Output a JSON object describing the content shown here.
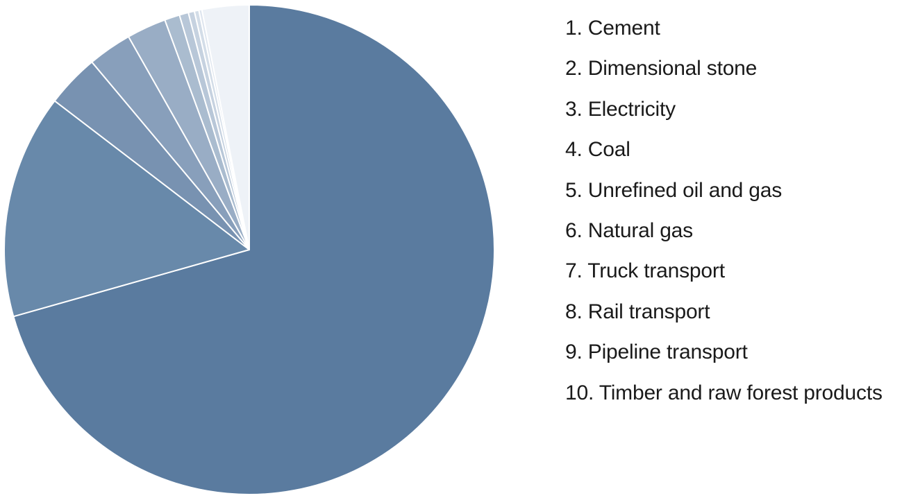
{
  "chart_data": {
    "type": "pie",
    "start_angle_deg": 0,
    "direction": "clockwise",
    "slices": [
      {
        "label": "Cement",
        "value": 70.6,
        "color": "#5a7b9f"
      },
      {
        "label": "Dimensional stone",
        "value": 14.8,
        "color": "#6889aa"
      },
      {
        "label": "Electricity",
        "value": 3.5,
        "color": "#7892b1"
      },
      {
        "label": "Coal",
        "value": 2.9,
        "color": "#889fbb"
      },
      {
        "label": "Unrefined oil and gas",
        "value": 2.6,
        "color": "#99adc5"
      },
      {
        "label": "Natural gas",
        "value": 1.0,
        "color": "#aabccf"
      },
      {
        "label": "Truck transport",
        "value": 0.6,
        "color": "#b8c7d8"
      },
      {
        "label": "Rail transport",
        "value": 0.4,
        "color": "#c6d2e0"
      },
      {
        "label": "Pipeline transport",
        "value": 0.3,
        "color": "#d3dde8"
      },
      {
        "label": "Timber and raw forest products",
        "value": 0.2,
        "color": "#dfe6ef"
      },
      {
        "label": "",
        "value": 3.1,
        "color": "#eef2f7"
      }
    ],
    "legend": {
      "placement": "right",
      "items": [
        "1. Cement",
        "2. Dimensional stone",
        "3. Electricity",
        "4. Coal",
        "5. Unrefined oil and gas",
        "6. Natural gas",
        "7. Truck transport",
        "8. Rail transport",
        "9. Pipeline transport",
        "10. Timber and raw forest products"
      ]
    }
  }
}
